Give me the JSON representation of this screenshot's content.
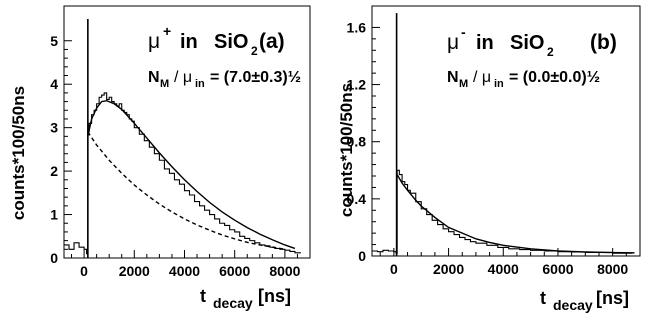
{
  "chart_data": [
    {
      "type": "histogram",
      "panel_label": "(a)",
      "title_particle": "μ",
      "title_charge": "+",
      "title_in": "in",
      "title_material": "SiO",
      "title_material_sub": "2",
      "annotation": {
        "n_m": "N",
        "n_m_sub": "M",
        "slash_mu": "/ μ",
        "mu_sub": "in",
        "value": "= (7.0±0.3)½"
      },
      "ylabel": "counts*100/50ns",
      "xlabel_t": "t",
      "xlabel_sub": "decay",
      "xlabel_unit": "[ns]",
      "xlim": [
        -800,
        9000
      ],
      "ylim": [
        0,
        5.8
      ],
      "x_ticks": [
        0,
        2000,
        4000,
        6000,
        8000
      ],
      "y_ticks": [
        0,
        1,
        2,
        3,
        4,
        5
      ],
      "spike": {
        "x": 150,
        "y": 5.5
      },
      "series": [
        {
          "type": "step",
          "style": "solid",
          "x": [
            -800,
            -600,
            -400,
            -200,
            0,
            100,
            150,
            200,
            300,
            400,
            500,
            600,
            700,
            800,
            900,
            1000,
            1100,
            1200,
            1300,
            1400,
            1500,
            1600,
            1700,
            1800,
            1900,
            2000,
            2200,
            2400,
            2600,
            2800,
            3000,
            3200,
            3400,
            3600,
            3800,
            4000,
            4200,
            4400,
            4600,
            4800,
            5000,
            5200,
            5400,
            5600,
            5800,
            6000,
            6200,
            6400,
            6600,
            6800,
            7000,
            7200,
            7400,
            7600,
            7800,
            8000,
            8200,
            8400
          ],
          "y": [
            0.3,
            0.2,
            0.35,
            0.25,
            0.2,
            0.1,
            2.9,
            3.1,
            3.3,
            3.4,
            3.55,
            3.7,
            3.75,
            3.8,
            3.65,
            3.7,
            3.6,
            3.55,
            3.5,
            3.55,
            3.4,
            3.35,
            3.3,
            3.2,
            3.15,
            3.0,
            2.85,
            2.7,
            2.55,
            2.4,
            2.25,
            2.05,
            1.95,
            1.8,
            1.7,
            1.55,
            1.45,
            1.3,
            1.2,
            1.1,
            1.0,
            0.9,
            0.8,
            0.75,
            0.65,
            0.6,
            0.5,
            0.45,
            0.4,
            0.35,
            0.3,
            0.28,
            0.25,
            0.22,
            0.2,
            0.18,
            0.15,
            0.12
          ]
        },
        {
          "type": "fit",
          "style": "solid",
          "x": [
            150,
            300,
            500,
            700,
            900,
            1200,
            1500,
            2000,
            2500,
            3000,
            3500,
            4000,
            4500,
            5000,
            5500,
            6000,
            6500,
            7000,
            7500,
            8000,
            8400
          ],
          "y": [
            2.8,
            3.2,
            3.45,
            3.6,
            3.62,
            3.55,
            3.42,
            3.1,
            2.76,
            2.42,
            2.1,
            1.8,
            1.53,
            1.28,
            1.06,
            0.87,
            0.7,
            0.55,
            0.42,
            0.3,
            0.22
          ]
        },
        {
          "type": "fit",
          "style": "dashed",
          "x": [
            150,
            500,
            1000,
            1500,
            2000,
            2500,
            3000,
            3500,
            4000,
            4500,
            5000,
            5500,
            6000,
            6500,
            7000,
            7500,
            8000
          ],
          "y": [
            2.9,
            2.6,
            2.25,
            1.95,
            1.68,
            1.45,
            1.24,
            1.06,
            0.9,
            0.76,
            0.64,
            0.53,
            0.44,
            0.36,
            0.3,
            0.25,
            0.2
          ]
        }
      ]
    },
    {
      "type": "histogram",
      "panel_label": "(b)",
      "title_particle": "μ",
      "title_charge": "-",
      "title_in": "in",
      "title_material": "SiO",
      "title_material_sub": "2",
      "annotation": {
        "n_m": "N",
        "n_m_sub": "M",
        "slash_mu": "/ μ",
        "mu_sub": "in",
        "value": "= (0.0±0.0)½"
      },
      "ylabel": "counts*100/50ns",
      "xlabel_t": "t",
      "xlabel_sub": "decay",
      "xlabel_unit": "[ns]",
      "xlim": [
        -800,
        9000
      ],
      "ylim": [
        0,
        1.75
      ],
      "x_ticks": [
        0,
        2000,
        4000,
        6000,
        8000
      ],
      "y_ticks": [
        0,
        0.4,
        0.8,
        1.2,
        1.6
      ],
      "y_tick_labels": [
        "0",
        "0.4",
        "0.8",
        "1.2",
        "1.6"
      ],
      "spike": {
        "x": 100,
        "y": 1.7
      },
      "series": [
        {
          "type": "step",
          "style": "solid",
          "x": [
            -800,
            -600,
            -400,
            -200,
            0,
            80,
            120,
            200,
            300,
            400,
            500,
            600,
            800,
            1000,
            1200,
            1400,
            1600,
            1800,
            2000,
            2200,
            2400,
            2600,
            2800,
            3000,
            3400,
            3800,
            4200,
            4600,
            5000,
            5500,
            6000,
            6500,
            7000,
            7500,
            8000,
            8500
          ],
          "y": [
            0.035,
            0.03,
            0.04,
            0.035,
            0.03,
            0.02,
            0.6,
            0.57,
            0.52,
            0.5,
            0.46,
            0.44,
            0.38,
            0.33,
            0.29,
            0.25,
            0.22,
            0.19,
            0.17,
            0.15,
            0.13,
            0.115,
            0.1,
            0.09,
            0.075,
            0.06,
            0.05,
            0.045,
            0.04,
            0.035,
            0.03,
            0.028,
            0.025,
            0.025,
            0.02,
            0.02
          ]
        },
        {
          "type": "fit",
          "style": "solid",
          "x": [
            120,
            300,
            500,
            800,
            1000,
            1500,
            2000,
            2500,
            3000,
            3500,
            4000,
            5000,
            6000,
            7000,
            8000,
            8800
          ],
          "y": [
            0.57,
            0.51,
            0.46,
            0.39,
            0.35,
            0.27,
            0.2,
            0.16,
            0.12,
            0.095,
            0.075,
            0.05,
            0.035,
            0.028,
            0.024,
            0.022
          ]
        }
      ]
    }
  ]
}
